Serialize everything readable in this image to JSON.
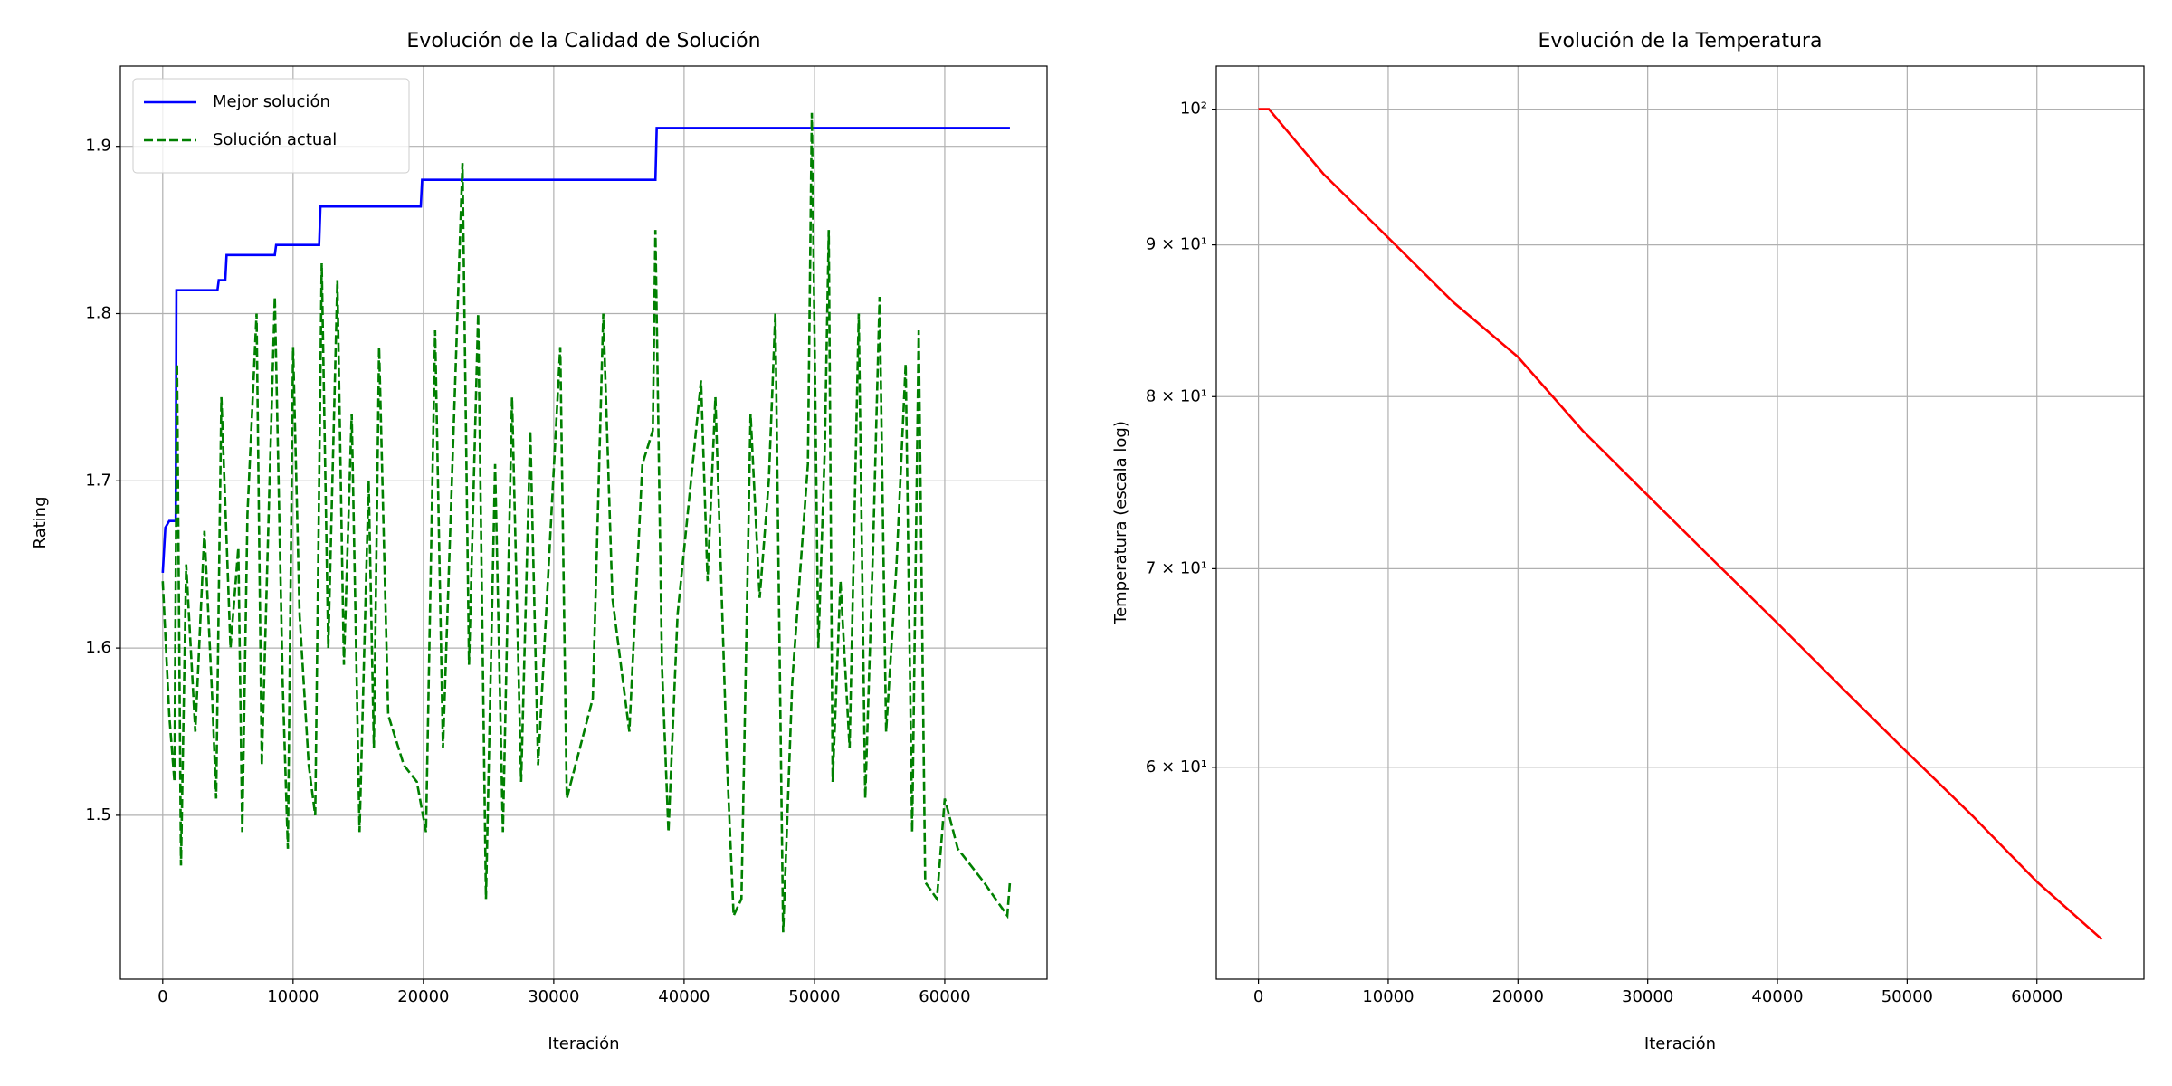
{
  "chart_data": [
    {
      "type": "line",
      "title": "Evolución de la Calidad de Solución",
      "xlabel": "Iteración",
      "ylabel": "Rating",
      "xlim": [
        -3250,
        67850
      ],
      "ylim": [
        1.402,
        1.948
      ],
      "xticks": [
        0,
        10000,
        20000,
        30000,
        40000,
        50000,
        60000
      ],
      "yticks": [
        1.5,
        1.6,
        1.7,
        1.8,
        1.9
      ],
      "grid": true,
      "legend": "upper left",
      "series": [
        {
          "name": "Mejor solución",
          "color": "#0000ff",
          "linestyle": "solid",
          "x": [
            0,
            200,
            500,
            1000,
            1050,
            4200,
            4300,
            4800,
            4900,
            8600,
            8700,
            12000,
            12100,
            19800,
            19900,
            37800,
            37900,
            65000
          ],
          "values": [
            1.645,
            1.672,
            1.676,
            1.676,
            1.814,
            1.814,
            1.82,
            1.82,
            1.835,
            1.835,
            1.841,
            1.841,
            1.864,
            1.864,
            1.88,
            1.88,
            1.911,
            1.911
          ]
        },
        {
          "name": "Solución actual",
          "color": "#008000",
          "linestyle": "dashed",
          "x": [
            0,
            500,
            900,
            1100,
            1400,
            1800,
            2500,
            3200,
            3800,
            4100,
            4500,
            5200,
            5800,
            6100,
            6500,
            7200,
            7600,
            8200,
            8600,
            9200,
            9600,
            10000,
            10500,
            11200,
            11700,
            12200,
            12700,
            13400,
            13900,
            14500,
            15100,
            15800,
            16200,
            16600,
            17300,
            18500,
            19500,
            20200,
            20900,
            21500,
            23000,
            23500,
            24200,
            24800,
            25500,
            26100,
            26800,
            27500,
            28200,
            28800,
            30500,
            31000,
            33000,
            33800,
            34500,
            35800,
            36800,
            37600,
            37800,
            38300,
            38800,
            39500,
            41300,
            41800,
            42400,
            43300,
            43800,
            44400,
            45100,
            45800,
            46500,
            47000,
            47600,
            48300,
            49500,
            49800,
            50300,
            50800,
            51100,
            51400,
            52000,
            52700,
            53400,
            53900,
            54500,
            55000,
            55500,
            56300,
            57000,
            57500,
            58000,
            58500,
            59400,
            60000,
            61000,
            62000,
            63000,
            64800,
            65000
          ],
          "values": [
            1.64,
            1.56,
            1.52,
            1.77,
            1.47,
            1.65,
            1.55,
            1.67,
            1.57,
            1.51,
            1.75,
            1.6,
            1.66,
            1.49,
            1.68,
            1.8,
            1.53,
            1.7,
            1.81,
            1.58,
            1.48,
            1.78,
            1.62,
            1.53,
            1.5,
            1.83,
            1.6,
            1.82,
            1.59,
            1.74,
            1.49,
            1.7,
            1.54,
            1.78,
            1.56,
            1.53,
            1.52,
            1.49,
            1.79,
            1.54,
            1.89,
            1.59,
            1.8,
            1.45,
            1.71,
            1.49,
            1.75,
            1.52,
            1.73,
            1.53,
            1.78,
            1.51,
            1.57,
            1.8,
            1.63,
            1.55,
            1.71,
            1.73,
            1.85,
            1.59,
            1.49,
            1.62,
            1.76,
            1.64,
            1.75,
            1.53,
            1.44,
            1.45,
            1.74,
            1.63,
            1.7,
            1.8,
            1.43,
            1.58,
            1.71,
            1.92,
            1.6,
            1.72,
            1.85,
            1.52,
            1.64,
            1.54,
            1.8,
            1.51,
            1.66,
            1.81,
            1.55,
            1.65,
            1.77,
            1.49,
            1.79,
            1.46,
            1.45,
            1.51,
            1.48,
            1.47,
            1.46,
            1.44,
            1.46
          ]
        }
      ]
    },
    {
      "type": "line",
      "title": "Evolución de la Temperatura",
      "xlabel": "Iteración",
      "ylabel": "Temperatura (escala log)",
      "yscale": "log",
      "xlim": [
        -3250,
        68250
      ],
      "ylim": [
        50.9,
        103.4
      ],
      "xticks": [
        0,
        10000,
        20000,
        30000,
        40000,
        50000,
        60000
      ],
      "yticks": [
        {
          "value": 60,
          "label": "6 × 10¹"
        },
        {
          "value": 70,
          "label": "7 × 10¹"
        },
        {
          "value": 80,
          "label": "8 × 10¹"
        },
        {
          "value": 90,
          "label": "9 × 10¹"
        },
        {
          "value": 100,
          "label": "10²"
        }
      ],
      "grid": true,
      "x": [
        0,
        800,
        5000,
        10000,
        15000,
        20000,
        25000,
        30000,
        35000,
        40000,
        45000,
        50000,
        55000,
        60000,
        65000
      ],
      "series": [
        {
          "color": "#ff0000",
          "linestyle": "solid",
          "values": [
            100,
            100,
            95.1,
            90.5,
            86.1,
            82.5,
            77.9,
            74.1,
            70.5,
            67.1,
            63.8,
            60.7,
            57.8,
            54.9,
            52.5
          ]
        }
      ]
    }
  ]
}
